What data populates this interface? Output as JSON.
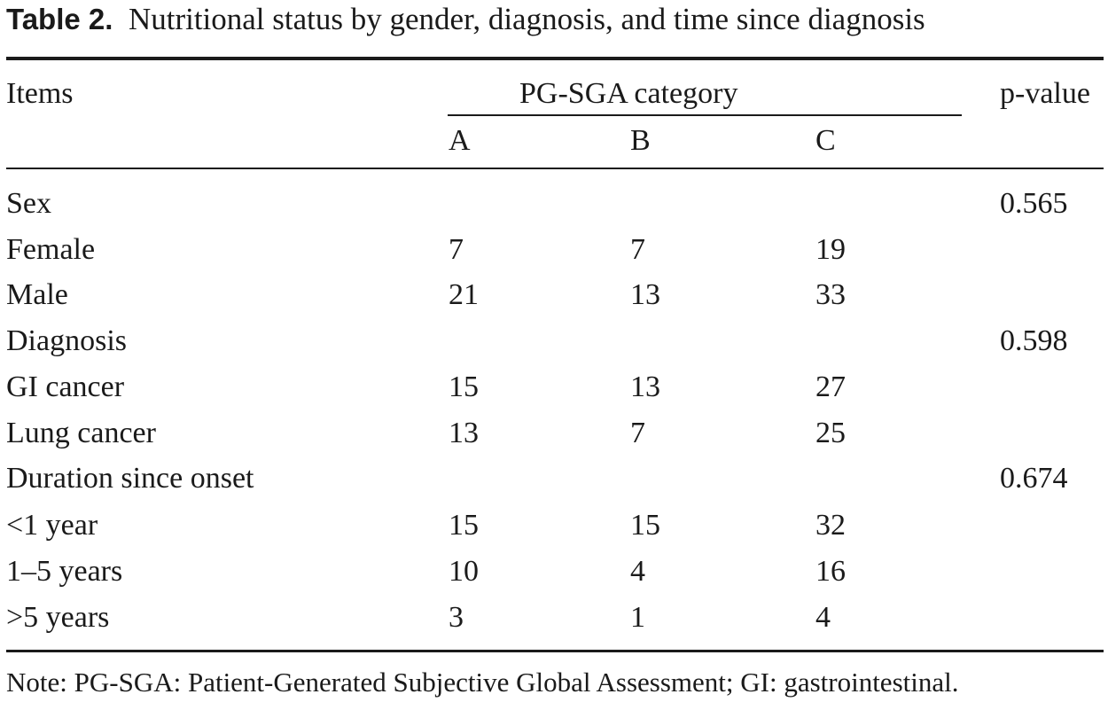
{
  "caption": {
    "label": "Table 2.",
    "text": "Nutritional status by gender, diagnosis, and time since diagnosis"
  },
  "header": {
    "items": "Items",
    "group": "PG-SGA category",
    "sub": [
      "A",
      "B",
      "C"
    ],
    "pvalue": "p-value"
  },
  "rows": [
    {
      "item": "Sex",
      "a": "",
      "b": "",
      "c": "",
      "p": "0.565"
    },
    {
      "item": "Female",
      "a": "7",
      "b": "7",
      "c": "19",
      "p": ""
    },
    {
      "item": "Male",
      "a": "21",
      "b": "13",
      "c": "33",
      "p": ""
    },
    {
      "item": "Diagnosis",
      "a": "",
      "b": "",
      "c": "",
      "p": "0.598"
    },
    {
      "item": "GI cancer",
      "a": "15",
      "b": "13",
      "c": "27",
      "p": ""
    },
    {
      "item": "Lung cancer",
      "a": "13",
      "b": "7",
      "c": "25",
      "p": ""
    },
    {
      "item": "Duration since onset",
      "a": "",
      "b": "",
      "c": "",
      "p": "0.674"
    },
    {
      "item": "<1 year",
      "a": "15",
      "b": "15",
      "c": "32",
      "p": ""
    },
    {
      "item": "1–5 years",
      "a": "10",
      "b": "4",
      "c": "16",
      "p": ""
    },
    {
      "item": ">5 years",
      "a": "3",
      "b": "1",
      "c": "4",
      "p": ""
    }
  ],
  "note": "Note: PG-SGA: Patient-Generated Subjective Global Assessment; GI: gastrointestinal."
}
